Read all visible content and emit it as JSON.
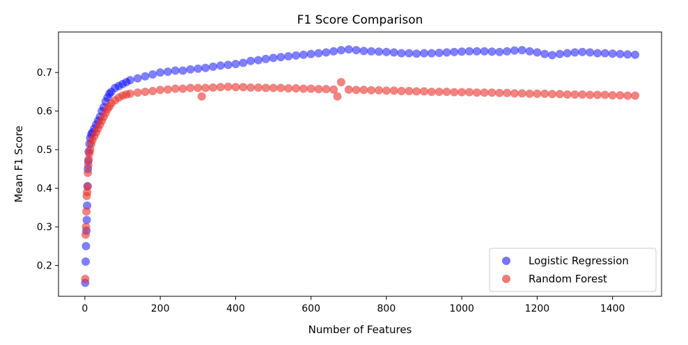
{
  "chart_data": {
    "type": "scatter",
    "title": "F1 Score Comparison",
    "xlabel": "Number of Features",
    "ylabel": "Mean F1 Score",
    "xlim": [
      -70,
      1530
    ],
    "ylim": [
      0.12,
      0.805
    ],
    "xticks": [
      0,
      200,
      400,
      600,
      800,
      1000,
      1200,
      1400
    ],
    "yticks": [
      0.2,
      0.3,
      0.4,
      0.5,
      0.6,
      0.7
    ],
    "grid": false,
    "legend_position": "lower-right",
    "series": [
      {
        "name": "Logistic Regression",
        "color": "#0000ff",
        "points": [
          [
            1,
            0.155
          ],
          [
            2,
            0.21
          ],
          [
            3,
            0.25
          ],
          [
            4,
            0.29
          ],
          [
            5,
            0.318
          ],
          [
            6,
            0.355
          ],
          [
            7,
            0.405
          ],
          [
            8,
            0.45
          ],
          [
            9,
            0.47
          ],
          [
            10,
            0.495
          ],
          [
            12,
            0.515
          ],
          [
            14,
            0.53
          ],
          [
            17,
            0.54
          ],
          [
            20,
            0.545
          ],
          [
            25,
            0.555
          ],
          [
            30,
            0.565
          ],
          [
            35,
            0.575
          ],
          [
            40,
            0.585
          ],
          [
            45,
            0.6
          ],
          [
            50,
            0.61
          ],
          [
            55,
            0.625
          ],
          [
            60,
            0.635
          ],
          [
            65,
            0.645
          ],
          [
            70,
            0.65
          ],
          [
            80,
            0.66
          ],
          [
            90,
            0.665
          ],
          [
            100,
            0.67
          ],
          [
            110,
            0.675
          ],
          [
            120,
            0.68
          ],
          [
            140,
            0.685
          ],
          [
            160,
            0.69
          ],
          [
            180,
            0.695
          ],
          [
            200,
            0.7
          ],
          [
            220,
            0.702
          ],
          [
            240,
            0.705
          ],
          [
            260,
            0.705
          ],
          [
            280,
            0.708
          ],
          [
            300,
            0.71
          ],
          [
            320,
            0.712
          ],
          [
            340,
            0.715
          ],
          [
            360,
            0.718
          ],
          [
            380,
            0.72
          ],
          [
            400,
            0.722
          ],
          [
            420,
            0.725
          ],
          [
            440,
            0.73
          ],
          [
            460,
            0.732
          ],
          [
            480,
            0.735
          ],
          [
            500,
            0.738
          ],
          [
            520,
            0.74
          ],
          [
            540,
            0.742
          ],
          [
            560,
            0.744
          ],
          [
            580,
            0.746
          ],
          [
            600,
            0.748
          ],
          [
            620,
            0.75
          ],
          [
            640,
            0.752
          ],
          [
            660,
            0.755
          ],
          [
            680,
            0.758
          ],
          [
            700,
            0.76
          ],
          [
            720,
            0.758
          ],
          [
            740,
            0.756
          ],
          [
            760,
            0.755
          ],
          [
            780,
            0.754
          ],
          [
            800,
            0.753
          ],
          [
            820,
            0.752
          ],
          [
            840,
            0.75
          ],
          [
            860,
            0.75
          ],
          [
            880,
            0.749
          ],
          [
            900,
            0.75
          ],
          [
            920,
            0.75
          ],
          [
            940,
            0.751
          ],
          [
            960,
            0.752
          ],
          [
            980,
            0.753
          ],
          [
            1000,
            0.754
          ],
          [
            1020,
            0.755
          ],
          [
            1040,
            0.755
          ],
          [
            1060,
            0.755
          ],
          [
            1080,
            0.754
          ],
          [
            1100,
            0.753
          ],
          [
            1120,
            0.755
          ],
          [
            1140,
            0.757
          ],
          [
            1160,
            0.758
          ],
          [
            1180,
            0.755
          ],
          [
            1200,
            0.752
          ],
          [
            1220,
            0.748
          ],
          [
            1240,
            0.745
          ],
          [
            1260,
            0.748
          ],
          [
            1280,
            0.75
          ],
          [
            1300,
            0.752
          ],
          [
            1320,
            0.753
          ],
          [
            1340,
            0.752
          ],
          [
            1360,
            0.75
          ],
          [
            1380,
            0.75
          ],
          [
            1400,
            0.749
          ],
          [
            1420,
            0.748
          ],
          [
            1440,
            0.747
          ],
          [
            1460,
            0.746
          ]
        ]
      },
      {
        "name": "Random Forest",
        "color": "#e8322b",
        "points": [
          [
            1,
            0.165
          ],
          [
            2,
            0.28
          ],
          [
            3,
            0.3
          ],
          [
            4,
            0.34
          ],
          [
            5,
            0.38
          ],
          [
            6,
            0.39
          ],
          [
            7,
            0.405
          ],
          [
            8,
            0.44
          ],
          [
            9,
            0.46
          ],
          [
            10,
            0.475
          ],
          [
            12,
            0.49
          ],
          [
            14,
            0.5
          ],
          [
            17,
            0.515
          ],
          [
            20,
            0.525
          ],
          [
            25,
            0.535
          ],
          [
            30,
            0.545
          ],
          [
            35,
            0.555
          ],
          [
            40,
            0.565
          ],
          [
            45,
            0.575
          ],
          [
            50,
            0.585
          ],
          [
            55,
            0.595
          ],
          [
            60,
            0.605
          ],
          [
            65,
            0.612
          ],
          [
            70,
            0.62
          ],
          [
            80,
            0.628
          ],
          [
            90,
            0.635
          ],
          [
            100,
            0.64
          ],
          [
            110,
            0.643
          ],
          [
            120,
            0.645
          ],
          [
            140,
            0.648
          ],
          [
            160,
            0.65
          ],
          [
            180,
            0.652
          ],
          [
            200,
            0.655
          ],
          [
            220,
            0.656
          ],
          [
            240,
            0.658
          ],
          [
            260,
            0.658
          ],
          [
            280,
            0.66
          ],
          [
            300,
            0.66
          ],
          [
            310,
            0.638
          ],
          [
            320,
            0.66
          ],
          [
            340,
            0.661
          ],
          [
            360,
            0.662
          ],
          [
            380,
            0.663
          ],
          [
            400,
            0.662
          ],
          [
            420,
            0.662
          ],
          [
            440,
            0.661
          ],
          [
            460,
            0.661
          ],
          [
            480,
            0.66
          ],
          [
            500,
            0.66
          ],
          [
            520,
            0.66
          ],
          [
            540,
            0.659
          ],
          [
            560,
            0.659
          ],
          [
            580,
            0.658
          ],
          [
            600,
            0.658
          ],
          [
            620,
            0.657
          ],
          [
            640,
            0.657
          ],
          [
            660,
            0.656
          ],
          [
            670,
            0.638
          ],
          [
            680,
            0.675
          ],
          [
            700,
            0.656
          ],
          [
            720,
            0.655
          ],
          [
            740,
            0.655
          ],
          [
            760,
            0.654
          ],
          [
            780,
            0.654
          ],
          [
            800,
            0.653
          ],
          [
            820,
            0.653
          ],
          [
            840,
            0.652
          ],
          [
            860,
            0.652
          ],
          [
            880,
            0.651
          ],
          [
            900,
            0.651
          ],
          [
            920,
            0.65
          ],
          [
            940,
            0.65
          ],
          [
            960,
            0.65
          ],
          [
            980,
            0.649
          ],
          [
            1000,
            0.649
          ],
          [
            1020,
            0.649
          ],
          [
            1040,
            0.648
          ],
          [
            1060,
            0.648
          ],
          [
            1080,
            0.648
          ],
          [
            1100,
            0.647
          ],
          [
            1120,
            0.647
          ],
          [
            1140,
            0.646
          ],
          [
            1160,
            0.646
          ],
          [
            1180,
            0.645
          ],
          [
            1200,
            0.645
          ],
          [
            1220,
            0.645
          ],
          [
            1240,
            0.644
          ],
          [
            1260,
            0.644
          ],
          [
            1280,
            0.643
          ],
          [
            1300,
            0.643
          ],
          [
            1320,
            0.643
          ],
          [
            1340,
            0.642
          ],
          [
            1360,
            0.642
          ],
          [
            1380,
            0.642
          ],
          [
            1400,
            0.641
          ],
          [
            1420,
            0.641
          ],
          [
            1440,
            0.64
          ],
          [
            1460,
            0.64
          ]
        ]
      }
    ]
  }
}
